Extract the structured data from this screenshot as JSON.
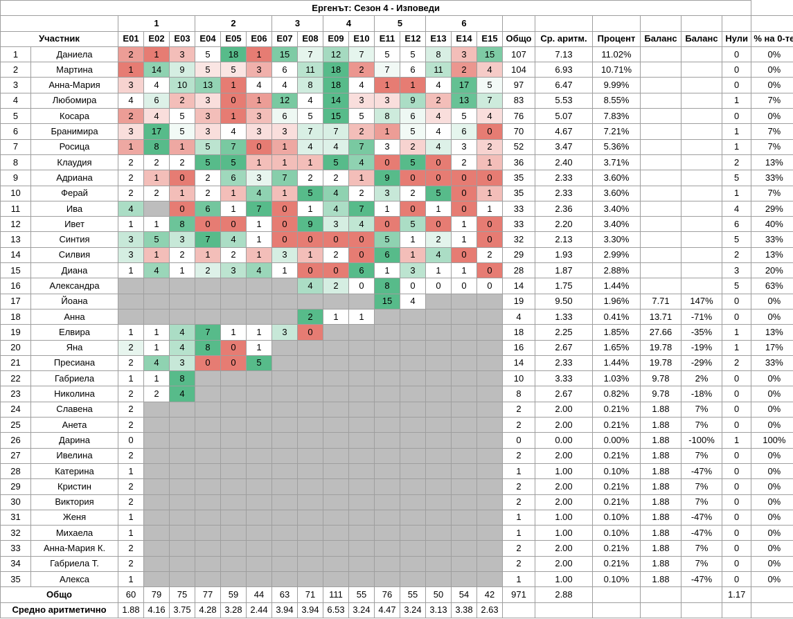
{
  "title": "Ергенът: Сезон 4 - Изповеди",
  "week_labels": [
    "1",
    "2",
    "3",
    "4",
    "5",
    "6"
  ],
  "headers": {
    "name": "Участник",
    "episodes": [
      "E01",
      "E02",
      "E03",
      "E04",
      "E05",
      "E06",
      "E07",
      "E08",
      "E09",
      "E10",
      "E11",
      "E12",
      "E13",
      "E14",
      "E15"
    ],
    "total": "Общо",
    "avg": "Ср. аритм.",
    "pct": "Процент",
    "bal1": "Баланс",
    "bal2": "Баланс",
    "zeros": "Нули",
    "zero_pct": "% на 0-те"
  },
  "colors": {
    "gray": "#bdbdbd",
    "green_dark": "#57bb8a",
    "red_dark": "#e67c73"
  },
  "rows": [
    {
      "idx": "1",
      "name": "Даниела",
      "eps": [
        2,
        1,
        3,
        5,
        18,
        1,
        15,
        7,
        12,
        7,
        5,
        5,
        8,
        3,
        15
      ],
      "total": "107",
      "avg": "7.13",
      "pct": "11.02%",
      "bal1": "",
      "bal2": "",
      "zeros": "0",
      "zpct": "0%"
    },
    {
      "idx": "2",
      "name": "Мартина",
      "eps": [
        1,
        14,
        9,
        5,
        5,
        3,
        6,
        11,
        18,
        2,
        7,
        6,
        11,
        2,
        4
      ],
      "total": "104",
      "avg": "6.93",
      "pct": "10.71%",
      "bal1": "",
      "bal2": "",
      "zeros": "0",
      "zpct": "0%"
    },
    {
      "idx": "3",
      "name": "Анна-Мария",
      "eps": [
        3,
        4,
        10,
        13,
        1,
        4,
        4,
        8,
        18,
        4,
        1,
        1,
        4,
        17,
        5
      ],
      "total": "97",
      "avg": "6.47",
      "pct": "9.99%",
      "bal1": "",
      "bal2": "",
      "zeros": "0",
      "zpct": "0%"
    },
    {
      "idx": "4",
      "name": "Любомира",
      "eps": [
        4,
        6,
        2,
        3,
        0,
        1,
        12,
        4,
        14,
        3,
        3,
        9,
        2,
        13,
        7
      ],
      "total": "83",
      "avg": "5.53",
      "pct": "8.55%",
      "bal1": "",
      "bal2": "",
      "zeros": "1",
      "zpct": "7%"
    },
    {
      "idx": "5",
      "name": "Косара",
      "eps": [
        2,
        4,
        5,
        3,
        1,
        3,
        6,
        5,
        15,
        5,
        8,
        6,
        4,
        5,
        4
      ],
      "total": "76",
      "avg": "5.07",
      "pct": "7.83%",
      "bal1": "",
      "bal2": "",
      "zeros": "0",
      "zpct": "0%"
    },
    {
      "idx": "6",
      "name": "Бранимира",
      "eps": [
        3,
        17,
        5,
        3,
        4,
        3,
        3,
        7,
        7,
        2,
        1,
        5,
        4,
        6,
        0
      ],
      "total": "70",
      "avg": "4.67",
      "pct": "7.21%",
      "bal1": "",
      "bal2": "",
      "zeros": "1",
      "zpct": "7%"
    },
    {
      "idx": "7",
      "name": "Росица",
      "eps": [
        1,
        8,
        1,
        5,
        7,
        0,
        1,
        4,
        4,
        7,
        3,
        2,
        4,
        3,
        2
      ],
      "total": "52",
      "avg": "3.47",
      "pct": "5.36%",
      "bal1": "",
      "bal2": "",
      "zeros": "1",
      "zpct": "7%"
    },
    {
      "idx": "8",
      "name": "Клаудия",
      "eps": [
        2,
        2,
        2,
        5,
        5,
        1,
        1,
        1,
        5,
        4,
        0,
        5,
        0,
        2,
        1
      ],
      "total": "36",
      "avg": "2.40",
      "pct": "3.71%",
      "bal1": "",
      "bal2": "",
      "zeros": "2",
      "zpct": "13%"
    },
    {
      "idx": "9",
      "name": "Адриана",
      "eps": [
        2,
        1,
        0,
        2,
        6,
        3,
        7,
        2,
        2,
        1,
        9,
        0,
        0,
        0,
        0
      ],
      "total": "35",
      "avg": "2.33",
      "pct": "3.60%",
      "bal1": "",
      "bal2": "",
      "zeros": "5",
      "zpct": "33%"
    },
    {
      "idx": "10",
      "name": "Ферай",
      "eps": [
        2,
        2,
        1,
        2,
        1,
        4,
        1,
        5,
        4,
        2,
        3,
        2,
        5,
        0,
        1
      ],
      "total": "35",
      "avg": "2.33",
      "pct": "3.60%",
      "bal1": "",
      "bal2": "",
      "zeros": "1",
      "zpct": "7%"
    },
    {
      "idx": "11",
      "name": "Ива",
      "eps": [
        4,
        null,
        0,
        6,
        1,
        7,
        0,
        1,
        4,
        7,
        1,
        0,
        1,
        0,
        1
      ],
      "total": "33",
      "avg": "2.36",
      "pct": "3.40%",
      "bal1": "",
      "bal2": "",
      "zeros": "4",
      "zpct": "29%"
    },
    {
      "idx": "12",
      "name": "Ивет",
      "eps": [
        1,
        1,
        8,
        0,
        0,
        1,
        0,
        9,
        3,
        4,
        0,
        5,
        0,
        1,
        0
      ],
      "total": "33",
      "avg": "2.20",
      "pct": "3.40%",
      "bal1": "",
      "bal2": "",
      "zeros": "6",
      "zpct": "40%"
    },
    {
      "idx": "13",
      "name": "Синтия",
      "eps": [
        3,
        5,
        3,
        7,
        4,
        1,
        0,
        0,
        0,
        0,
        5,
        1,
        2,
        1,
        0
      ],
      "total": "32",
      "avg": "2.13",
      "pct": "3.30%",
      "bal1": "",
      "bal2": "",
      "zeros": "5",
      "zpct": "33%"
    },
    {
      "idx": "14",
      "name": "Силвия",
      "eps": [
        3,
        1,
        2,
        1,
        2,
        1,
        3,
        1,
        2,
        0,
        6,
        1,
        4,
        0,
        2
      ],
      "total": "29",
      "avg": "1.93",
      "pct": "2.99%",
      "bal1": "",
      "bal2": "",
      "zeros": "2",
      "zpct": "13%"
    },
    {
      "idx": "15",
      "name": "Диана",
      "eps": [
        1,
        4,
        1,
        2,
        3,
        4,
        1,
        0,
        0,
        6,
        1,
        3,
        1,
        1,
        0
      ],
      "total": "28",
      "avg": "1.87",
      "pct": "2.88%",
      "bal1": "",
      "bal2": "",
      "zeros": "3",
      "zpct": "20%"
    },
    {
      "idx": "16",
      "name": "Александра",
      "eps": [
        null,
        null,
        null,
        null,
        null,
        null,
        null,
        4,
        2,
        0,
        8,
        0,
        0,
        0,
        0
      ],
      "total": "14",
      "avg": "1.75",
      "pct": "1.44%",
      "bal1": "",
      "bal2": "",
      "zeros": "5",
      "zpct": "63%"
    },
    {
      "idx": "17",
      "name": "Йоана",
      "eps": [
        null,
        null,
        null,
        null,
        null,
        null,
        null,
        null,
        null,
        null,
        15,
        4,
        null,
        null,
        null
      ],
      "total": "19",
      "avg": "9.50",
      "pct": "1.96%",
      "bal1": "7.71",
      "bal2": "147%",
      "zeros": "0",
      "zpct": "0%"
    },
    {
      "idx": "18",
      "name": "Анна",
      "eps": [
        null,
        null,
        null,
        null,
        null,
        null,
        null,
        2,
        1,
        1,
        null,
        null,
        null,
        null,
        null
      ],
      "total": "4",
      "avg": "1.33",
      "pct": "0.41%",
      "bal1": "13.71",
      "bal2": "-71%",
      "zeros": "0",
      "zpct": "0%"
    },
    {
      "idx": "19",
      "name": "Елвира",
      "eps": [
        1,
        1,
        4,
        7,
        1,
        1,
        3,
        0,
        null,
        null,
        null,
        null,
        null,
        null,
        null
      ],
      "total": "18",
      "avg": "2.25",
      "pct": "1.85%",
      "bal1": "27.66",
      "bal2": "-35%",
      "zeros": "1",
      "zpct": "13%"
    },
    {
      "idx": "20",
      "name": "Яна",
      "eps": [
        2,
        1,
        4,
        8,
        0,
        1,
        null,
        null,
        null,
        null,
        null,
        null,
        null,
        null,
        null
      ],
      "total": "16",
      "avg": "2.67",
      "pct": "1.65%",
      "bal1": "19.78",
      "bal2": "-19%",
      "zeros": "1",
      "zpct": "17%"
    },
    {
      "idx": "21",
      "name": "Пресиана",
      "eps": [
        2,
        4,
        3,
        0,
        0,
        5,
        null,
        null,
        null,
        null,
        null,
        null,
        null,
        null,
        null
      ],
      "total": "14",
      "avg": "2.33",
      "pct": "1.44%",
      "bal1": "19.78",
      "bal2": "-29%",
      "zeros": "2",
      "zpct": "33%"
    },
    {
      "idx": "22",
      "name": "Габриела",
      "eps": [
        1,
        1,
        8,
        null,
        null,
        null,
        null,
        null,
        null,
        null,
        null,
        null,
        null,
        null,
        null
      ],
      "total": "10",
      "avg": "3.33",
      "pct": "1.03%",
      "bal1": "9.78",
      "bal2": "2%",
      "zeros": "0",
      "zpct": "0%"
    },
    {
      "idx": "23",
      "name": "Николина",
      "eps": [
        2,
        2,
        4,
        null,
        null,
        null,
        null,
        null,
        null,
        null,
        null,
        null,
        null,
        null,
        null
      ],
      "total": "8",
      "avg": "2.67",
      "pct": "0.82%",
      "bal1": "9.78",
      "bal2": "-18%",
      "zeros": "0",
      "zpct": "0%"
    },
    {
      "idx": "24",
      "name": "Славена",
      "eps": [
        2,
        null,
        null,
        null,
        null,
        null,
        null,
        null,
        null,
        null,
        null,
        null,
        null,
        null,
        null
      ],
      "total": "2",
      "avg": "2.00",
      "pct": "0.21%",
      "bal1": "1.88",
      "bal2": "7%",
      "zeros": "0",
      "zpct": "0%"
    },
    {
      "idx": "25",
      "name": "Анета",
      "eps": [
        2,
        null,
        null,
        null,
        null,
        null,
        null,
        null,
        null,
        null,
        null,
        null,
        null,
        null,
        null
      ],
      "total": "2",
      "avg": "2.00",
      "pct": "0.21%",
      "bal1": "1.88",
      "bal2": "7%",
      "zeros": "0",
      "zpct": "0%"
    },
    {
      "idx": "26",
      "name": "Дарина",
      "eps": [
        0,
        null,
        null,
        null,
        null,
        null,
        null,
        null,
        null,
        null,
        null,
        null,
        null,
        null,
        null
      ],
      "total": "0",
      "avg": "0.00",
      "pct": "0.00%",
      "bal1": "1.88",
      "bal2": "-100%",
      "zeros": "1",
      "zpct": "100%"
    },
    {
      "idx": "27",
      "name": "Ивелина",
      "eps": [
        2,
        null,
        null,
        null,
        null,
        null,
        null,
        null,
        null,
        null,
        null,
        null,
        null,
        null,
        null
      ],
      "total": "2",
      "avg": "2.00",
      "pct": "0.21%",
      "bal1": "1.88",
      "bal2": "7%",
      "zeros": "0",
      "zpct": "0%"
    },
    {
      "idx": "28",
      "name": "Катерина",
      "eps": [
        1,
        null,
        null,
        null,
        null,
        null,
        null,
        null,
        null,
        null,
        null,
        null,
        null,
        null,
        null
      ],
      "total": "1",
      "avg": "1.00",
      "pct": "0.10%",
      "bal1": "1.88",
      "bal2": "-47%",
      "zeros": "0",
      "zpct": "0%"
    },
    {
      "idx": "29",
      "name": "Кристин",
      "eps": [
        2,
        null,
        null,
        null,
        null,
        null,
        null,
        null,
        null,
        null,
        null,
        null,
        null,
        null,
        null
      ],
      "total": "2",
      "avg": "2.00",
      "pct": "0.21%",
      "bal1": "1.88",
      "bal2": "7%",
      "zeros": "0",
      "zpct": "0%"
    },
    {
      "idx": "30",
      "name": "Виктория",
      "eps": [
        2,
        null,
        null,
        null,
        null,
        null,
        null,
        null,
        null,
        null,
        null,
        null,
        null,
        null,
        null
      ],
      "total": "2",
      "avg": "2.00",
      "pct": "0.21%",
      "bal1": "1.88",
      "bal2": "7%",
      "zeros": "0",
      "zpct": "0%"
    },
    {
      "idx": "31",
      "name": "Женя",
      "eps": [
        1,
        null,
        null,
        null,
        null,
        null,
        null,
        null,
        null,
        null,
        null,
        null,
        null,
        null,
        null
      ],
      "total": "1",
      "avg": "1.00",
      "pct": "0.10%",
      "bal1": "1.88",
      "bal2": "-47%",
      "zeros": "0",
      "zpct": "0%"
    },
    {
      "idx": "32",
      "name": "Михаела",
      "eps": [
        1,
        null,
        null,
        null,
        null,
        null,
        null,
        null,
        null,
        null,
        null,
        null,
        null,
        null,
        null
      ],
      "total": "1",
      "avg": "1.00",
      "pct": "0.10%",
      "bal1": "1.88",
      "bal2": "-47%",
      "zeros": "0",
      "zpct": "0%"
    },
    {
      "idx": "33",
      "name": "Анна-Мария К.",
      "eps": [
        2,
        null,
        null,
        null,
        null,
        null,
        null,
        null,
        null,
        null,
        null,
        null,
        null,
        null,
        null
      ],
      "total": "2",
      "avg": "2.00",
      "pct": "0.21%",
      "bal1": "1.88",
      "bal2": "7%",
      "zeros": "0",
      "zpct": "0%"
    },
    {
      "idx": "34",
      "name": "Габриела Т.",
      "eps": [
        2,
        null,
        null,
        null,
        null,
        null,
        null,
        null,
        null,
        null,
        null,
        null,
        null,
        null,
        null
      ],
      "total": "2",
      "avg": "2.00",
      "pct": "0.21%",
      "bal1": "1.88",
      "bal2": "7%",
      "zeros": "0",
      "zpct": "0%"
    },
    {
      "idx": "35",
      "name": "Алекса",
      "eps": [
        1,
        null,
        null,
        null,
        null,
        null,
        null,
        null,
        null,
        null,
        null,
        null,
        null,
        null,
        null
      ],
      "total": "1",
      "avg": "1.00",
      "pct": "0.10%",
      "bal1": "1.88",
      "bal2": "-47%",
      "zeros": "0",
      "zpct": "0%"
    }
  ],
  "totals": {
    "label": "Общо",
    "eps": [
      "60",
      "79",
      "75",
      "77",
      "59",
      "44",
      "63",
      "71",
      "111",
      "55",
      "76",
      "55",
      "50",
      "54",
      "42"
    ],
    "total": "971",
    "avg": "2.88",
    "zeros": "1.17"
  },
  "averages": {
    "label": "Средно аритметично",
    "eps": [
      "1.88",
      "4.16",
      "3.75",
      "4.28",
      "3.28",
      "2.44",
      "3.94",
      "3.94",
      "6.53",
      "3.24",
      "4.47",
      "3.24",
      "3.13",
      "3.38",
      "2.63"
    ]
  }
}
